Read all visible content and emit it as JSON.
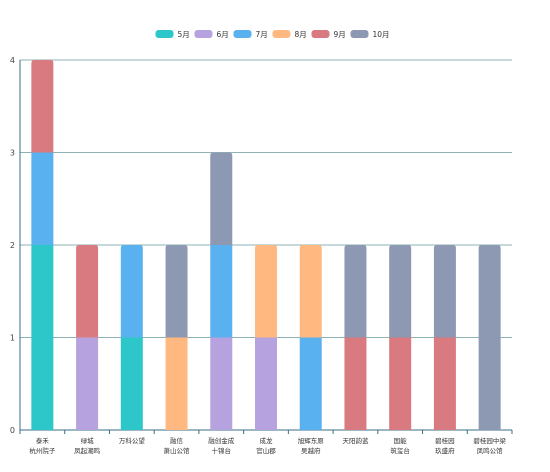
{
  "chart_data": {
    "type": "bar",
    "stacked": true,
    "categories": [
      [
        "泰禾",
        "杭州院子"
      ],
      [
        "绿城",
        "凤起潮鸣"
      ],
      [
        "万科公望"
      ],
      [
        "融信",
        "萧山公馆"
      ],
      [
        "融创金成",
        "十锦台"
      ],
      [
        "成龙",
        "官山郡"
      ],
      [
        "旭辉东原",
        "吴越府"
      ],
      [
        "天阳韵蓝"
      ],
      [
        "国能",
        "筑玺台"
      ],
      [
        "碧桂园",
        "玖盛府"
      ],
      [
        "碧桂园中梁",
        "凤鸣公馆"
      ]
    ],
    "series": [
      {
        "name": "5月",
        "color": "#2ec7c9",
        "values": [
          2,
          0,
          1,
          0,
          0,
          0,
          0,
          0,
          0,
          0,
          0
        ]
      },
      {
        "name": "6月",
        "color": "#b6a2de",
        "values": [
          0,
          1,
          0,
          0,
          1,
          1,
          0,
          0,
          0,
          0,
          0
        ]
      },
      {
        "name": "7月",
        "color": "#5ab1ef",
        "values": [
          1,
          0,
          1,
          0,
          1,
          0,
          1,
          0,
          0,
          0,
          0
        ]
      },
      {
        "name": "8月",
        "color": "#ffb980",
        "values": [
          0,
          0,
          0,
          1,
          0,
          1,
          1,
          0,
          0,
          0,
          0
        ]
      },
      {
        "name": "9月",
        "color": "#d87a80",
        "values": [
          1,
          1,
          0,
          0,
          0,
          0,
          0,
          1,
          1,
          1,
          0
        ]
      },
      {
        "name": "10月",
        "color": "#8d98b3",
        "values": [
          0,
          0,
          0,
          1,
          1,
          0,
          0,
          1,
          1,
          1,
          2
        ]
      }
    ],
    "ylim": [
      0,
      4
    ],
    "yticks": [
      0,
      1,
      2,
      3,
      4
    ],
    "legend": "top-center",
    "grid": true,
    "xlabel": "",
    "ylabel": "",
    "title": ""
  }
}
